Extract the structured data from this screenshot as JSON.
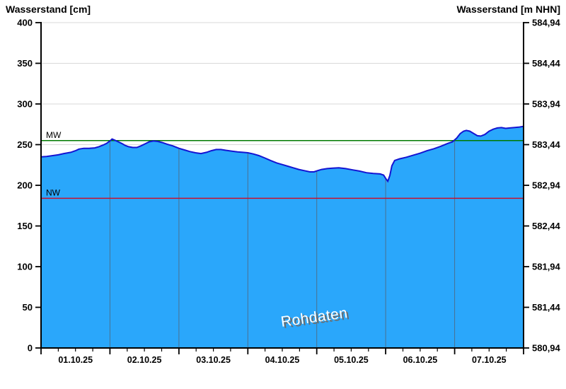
{
  "chart_data": {
    "type": "area",
    "axis_title_left": "Wasserstand [cm]",
    "axis_title_right": "Wasserstand [m NHN]",
    "watermark": "Rohdaten",
    "x_categories": [
      "01.10.25",
      "02.10.25",
      "03.10.25",
      "04.10.25",
      "05.10.25",
      "06.10.25",
      "07.10.25"
    ],
    "x_range_days": [
      0,
      7
    ],
    "minor_ticks_per_day": 4,
    "ylim_cm": [
      0,
      400
    ],
    "y_ticks_cm": [
      400,
      350,
      300,
      250,
      200,
      150,
      100,
      50,
      0
    ],
    "y_ticks_right_labels": [
      "584,94",
      "584,44",
      "583,94",
      "583,44",
      "582,94",
      "582,44",
      "581,94",
      "581,44",
      "580,94"
    ],
    "grid": true,
    "legend": "none",
    "reference_lines": [
      {
        "name": "MW",
        "value_cm": 255,
        "color": "#007a00"
      },
      {
        "name": "NW",
        "value_cm": 184,
        "color": "#c8102e"
      }
    ],
    "series": [
      {
        "name": "Wasserstand Rohdaten",
        "unit": "cm",
        "points": [
          [
            0.0,
            235
          ],
          [
            0.08,
            235.5
          ],
          [
            0.17,
            236.5
          ],
          [
            0.25,
            237.5
          ],
          [
            0.33,
            239
          ],
          [
            0.43,
            240.5
          ],
          [
            0.5,
            242.5
          ],
          [
            0.55,
            244.5
          ],
          [
            0.62,
            245.5
          ],
          [
            0.7,
            245.5
          ],
          [
            0.78,
            246
          ],
          [
            0.84,
            247.5
          ],
          [
            0.9,
            249.5
          ],
          [
            0.95,
            251.5
          ],
          [
            1.0,
            254.5
          ],
          [
            1.03,
            257
          ],
          [
            1.07,
            255.5
          ],
          [
            1.12,
            253.5
          ],
          [
            1.17,
            251.5
          ],
          [
            1.22,
            249
          ],
          [
            1.27,
            247.5
          ],
          [
            1.33,
            246.5
          ],
          [
            1.39,
            246.5
          ],
          [
            1.45,
            248.5
          ],
          [
            1.51,
            251
          ],
          [
            1.57,
            253.5
          ],
          [
            1.63,
            254.5
          ],
          [
            1.69,
            254
          ],
          [
            1.76,
            252.5
          ],
          [
            1.83,
            250.5
          ],
          [
            1.91,
            248.5
          ],
          [
            2.0,
            245.5
          ],
          [
            2.08,
            243.5
          ],
          [
            2.16,
            241.5
          ],
          [
            2.24,
            240
          ],
          [
            2.32,
            239
          ],
          [
            2.4,
            240.5
          ],
          [
            2.47,
            242.5
          ],
          [
            2.54,
            244
          ],
          [
            2.61,
            244
          ],
          [
            2.68,
            243
          ],
          [
            2.77,
            242
          ],
          [
            2.85,
            241
          ],
          [
            2.93,
            240.5
          ],
          [
            3.0,
            240
          ],
          [
            3.08,
            238.5
          ],
          [
            3.16,
            236.5
          ],
          [
            3.25,
            233.5
          ],
          [
            3.33,
            230.5
          ],
          [
            3.42,
            227.5
          ],
          [
            3.5,
            225.5
          ],
          [
            3.58,
            223.5
          ],
          [
            3.66,
            221.5
          ],
          [
            3.74,
            219.5
          ],
          [
            3.82,
            218
          ],
          [
            3.9,
            216.5
          ],
          [
            3.96,
            216.5
          ],
          [
            4.01,
            218
          ],
          [
            4.07,
            219.5
          ],
          [
            4.15,
            220.5
          ],
          [
            4.23,
            221
          ],
          [
            4.32,
            221.5
          ],
          [
            4.42,
            220.5
          ],
          [
            4.52,
            219
          ],
          [
            4.62,
            217.5
          ],
          [
            4.72,
            215.5
          ],
          [
            4.82,
            214.5
          ],
          [
            4.92,
            214
          ],
          [
            4.97,
            212.5
          ],
          [
            5.0,
            208.5
          ],
          [
            5.03,
            205
          ],
          [
            5.06,
            212
          ],
          [
            5.09,
            224
          ],
          [
            5.13,
            230.5
          ],
          [
            5.2,
            232.5
          ],
          [
            5.3,
            234.5
          ],
          [
            5.4,
            237
          ],
          [
            5.5,
            239.5
          ],
          [
            5.6,
            242.5
          ],
          [
            5.7,
            245
          ],
          [
            5.8,
            248
          ],
          [
            5.9,
            251.5
          ],
          [
            5.97,
            253.5
          ],
          [
            6.03,
            258
          ],
          [
            6.08,
            263.5
          ],
          [
            6.13,
            266.5
          ],
          [
            6.17,
            267.5
          ],
          [
            6.22,
            266.5
          ],
          [
            6.28,
            263.5
          ],
          [
            6.33,
            261
          ],
          [
            6.38,
            260.5
          ],
          [
            6.44,
            262.5
          ],
          [
            6.5,
            266.5
          ],
          [
            6.56,
            269
          ],
          [
            6.62,
            270.5
          ],
          [
            6.68,
            271
          ],
          [
            6.74,
            270
          ],
          [
            6.8,
            270.5
          ],
          [
            6.86,
            271
          ],
          [
            6.93,
            271.5
          ],
          [
            7.0,
            272.5
          ]
        ]
      }
    ],
    "colors": {
      "area_fill": "#2aa7fb",
      "curve_line": "#1414d2",
      "grid_line": "#d9d9d9",
      "day_grid_line": "#4a7090",
      "axis": "#000000",
      "tick_text": "#000000",
      "watermark_fill": "#ffffff",
      "watermark_shadow": "#6b6b6b"
    }
  }
}
